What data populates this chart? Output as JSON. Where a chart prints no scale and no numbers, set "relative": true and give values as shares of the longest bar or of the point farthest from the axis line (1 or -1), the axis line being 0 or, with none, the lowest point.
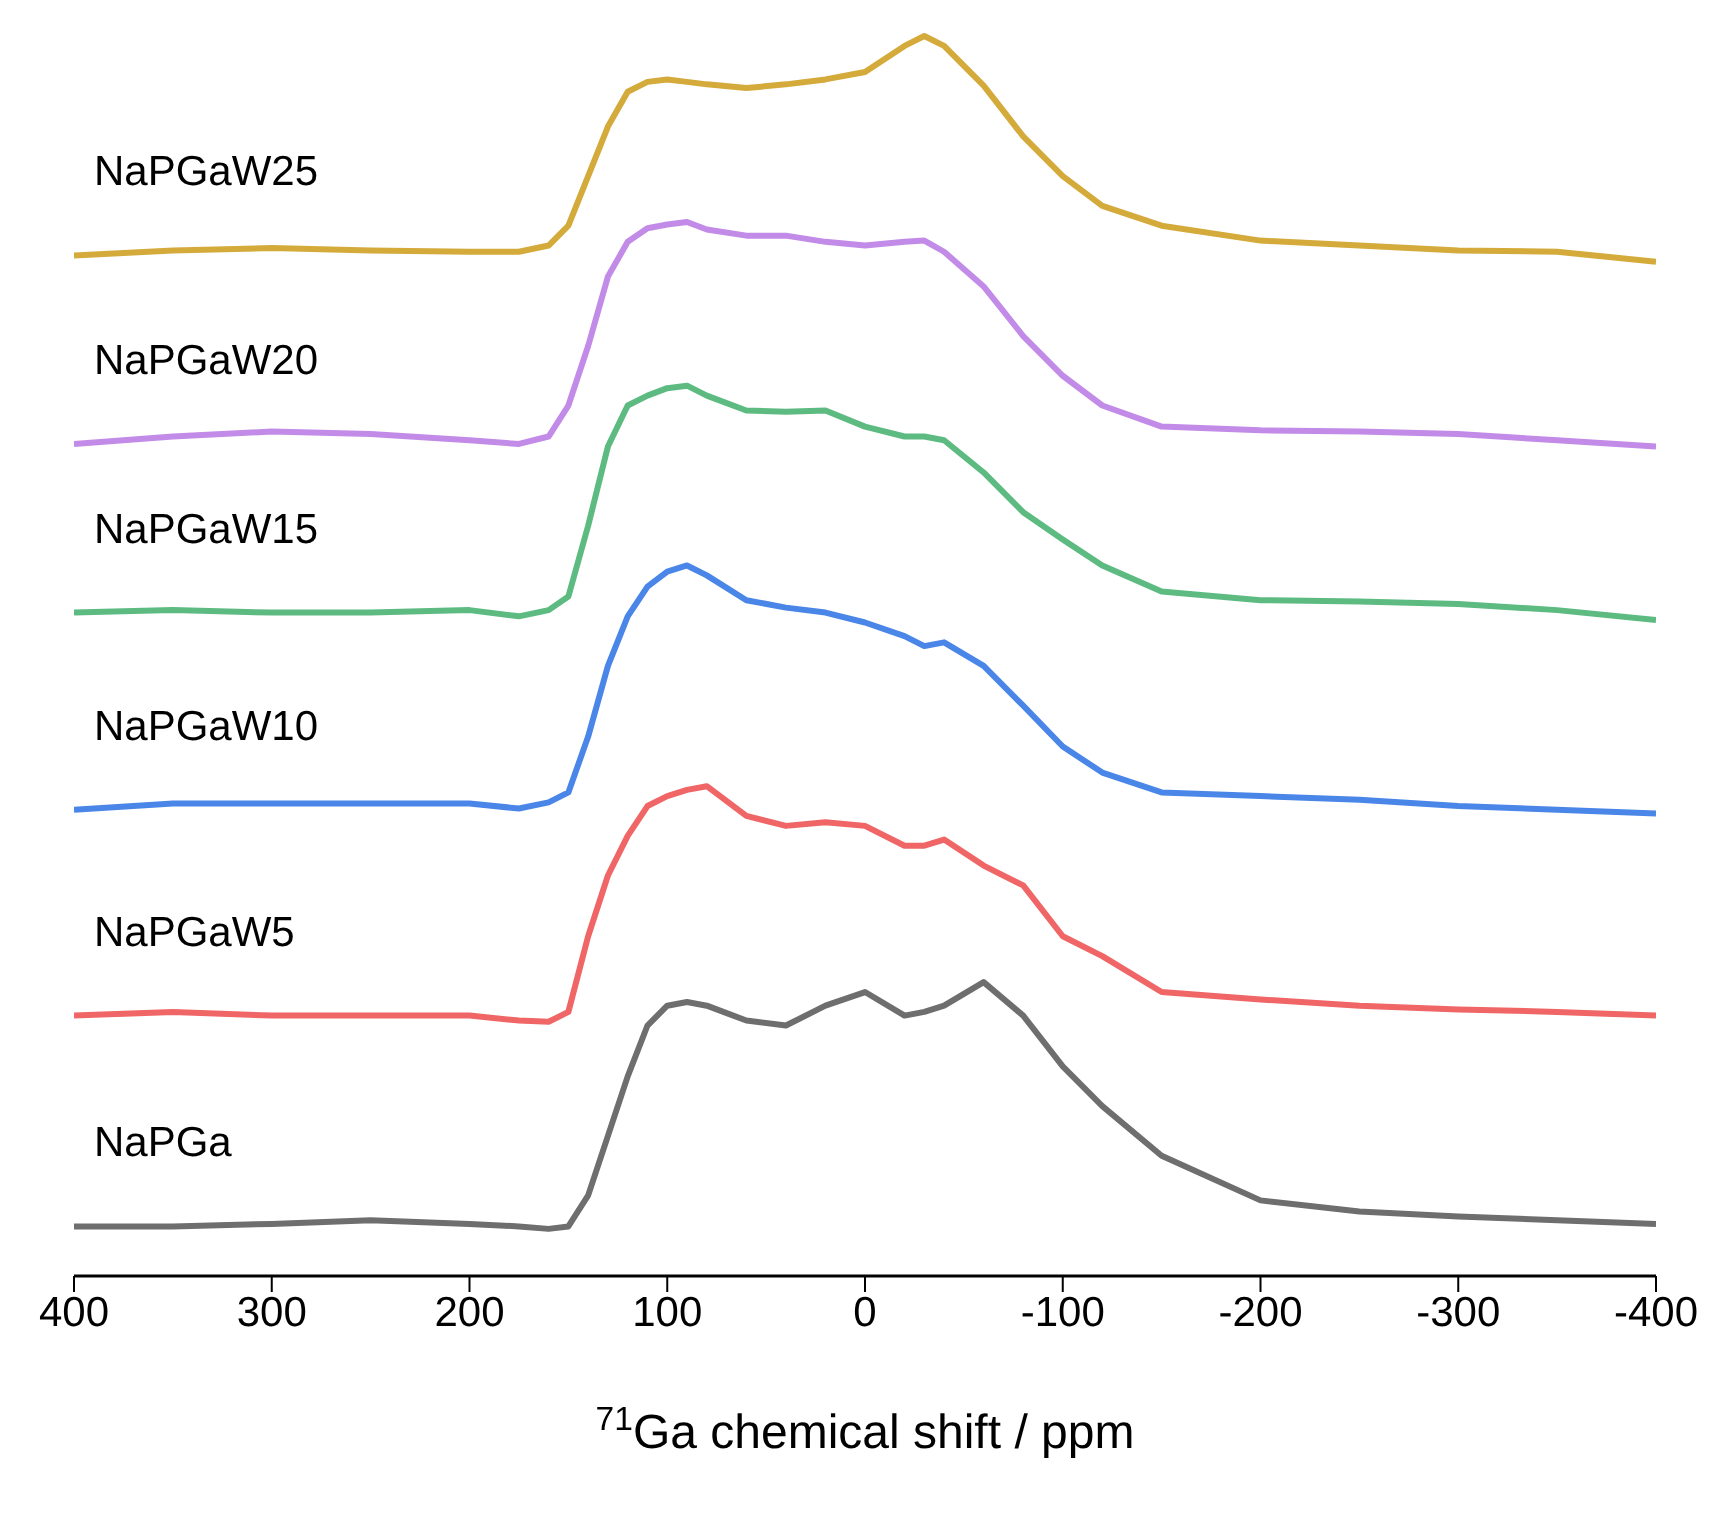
{
  "chart_data": {
    "type": "line",
    "relative": true,
    "xlabel": "$^{71}$Ga chemical shift / ppm",
    "xlim": [
      400,
      -400
    ],
    "xticks": [
      400,
      300,
      200,
      100,
      0,
      -100,
      -200,
      -300,
      -400
    ],
    "x": [
      400,
      350,
      300,
      250,
      200,
      175,
      160,
      150,
      140,
      130,
      120,
      110,
      100,
      90,
      80,
      60,
      40,
      20,
      0,
      -20,
      -30,
      -40,
      -60,
      -80,
      -100,
      -120,
      -150,
      -200,
      -250,
      -300,
      -350,
      -400
    ],
    "series": [
      {
        "name": "NaPGa",
        "color": "#6e6e6e",
        "values": [
          0.04,
          0.04,
          0.042,
          0.045,
          0.042,
          0.04,
          0.038,
          0.04,
          0.065,
          0.113,
          0.161,
          0.202,
          0.218,
          0.221,
          0.218,
          0.206,
          0.202,
          0.218,
          0.229,
          0.21,
          0.213,
          0.218,
          0.237,
          0.21,
          0.169,
          0.137,
          0.097,
          0.061,
          0.052,
          0.048,
          0.045,
          0.042
        ]
      },
      {
        "name": "NaPGaW5",
        "color": "#f06565",
        "values": [
          0.21,
          0.213,
          0.21,
          0.21,
          0.21,
          0.206,
          0.205,
          0.213,
          0.274,
          0.323,
          0.355,
          0.379,
          0.387,
          0.392,
          0.395,
          0.371,
          0.363,
          0.366,
          0.363,
          0.347,
          0.347,
          0.352,
          0.331,
          0.315,
          0.274,
          0.258,
          0.229,
          0.223,
          0.218,
          0.215,
          0.213,
          0.21
        ]
      },
      {
        "name": "NaPGaW10",
        "color": "#4a86e8",
        "values": [
          0.376,
          0.381,
          0.381,
          0.381,
          0.381,
          0.377,
          0.382,
          0.39,
          0.435,
          0.492,
          0.532,
          0.556,
          0.568,
          0.573,
          0.565,
          0.545,
          0.539,
          0.535,
          0.527,
          0.516,
          0.508,
          0.511,
          0.492,
          0.46,
          0.427,
          0.406,
          0.39,
          0.387,
          0.384,
          0.379,
          0.376,
          0.373
        ]
      },
      {
        "name": "NaPGaW15",
        "color": "#5dbb82",
        "values": [
          0.535,
          0.537,
          0.535,
          0.535,
          0.537,
          0.532,
          0.537,
          0.548,
          0.605,
          0.669,
          0.702,
          0.71,
          0.716,
          0.718,
          0.71,
          0.698,
          0.697,
          0.698,
          0.685,
          0.677,
          0.677,
          0.674,
          0.648,
          0.616,
          0.594,
          0.573,
          0.552,
          0.545,
          0.544,
          0.542,
          0.537,
          0.529
        ]
      },
      {
        "name": "NaPGaW20",
        "color": "#c38be8",
        "values": [
          0.671,
          0.677,
          0.681,
          0.679,
          0.674,
          0.671,
          0.677,
          0.702,
          0.75,
          0.806,
          0.834,
          0.845,
          0.848,
          0.85,
          0.844,
          0.839,
          0.839,
          0.834,
          0.831,
          0.834,
          0.835,
          0.826,
          0.798,
          0.758,
          0.726,
          0.702,
          0.685,
          0.682,
          0.681,
          0.679,
          0.674,
          0.669
        ]
      },
      {
        "name": "NaPGaW25",
        "color": "#d4aa3a",
        "values": [
          0.823,
          0.827,
          0.829,
          0.827,
          0.826,
          0.826,
          0.831,
          0.847,
          0.887,
          0.927,
          0.955,
          0.963,
          0.965,
          0.963,
          0.961,
          0.958,
          0.961,
          0.965,
          0.971,
          0.992,
          1,
          0.992,
          0.96,
          0.919,
          0.887,
          0.863,
          0.847,
          0.835,
          0.831,
          0.827,
          0.826,
          0.818
        ]
      }
    ]
  }
}
